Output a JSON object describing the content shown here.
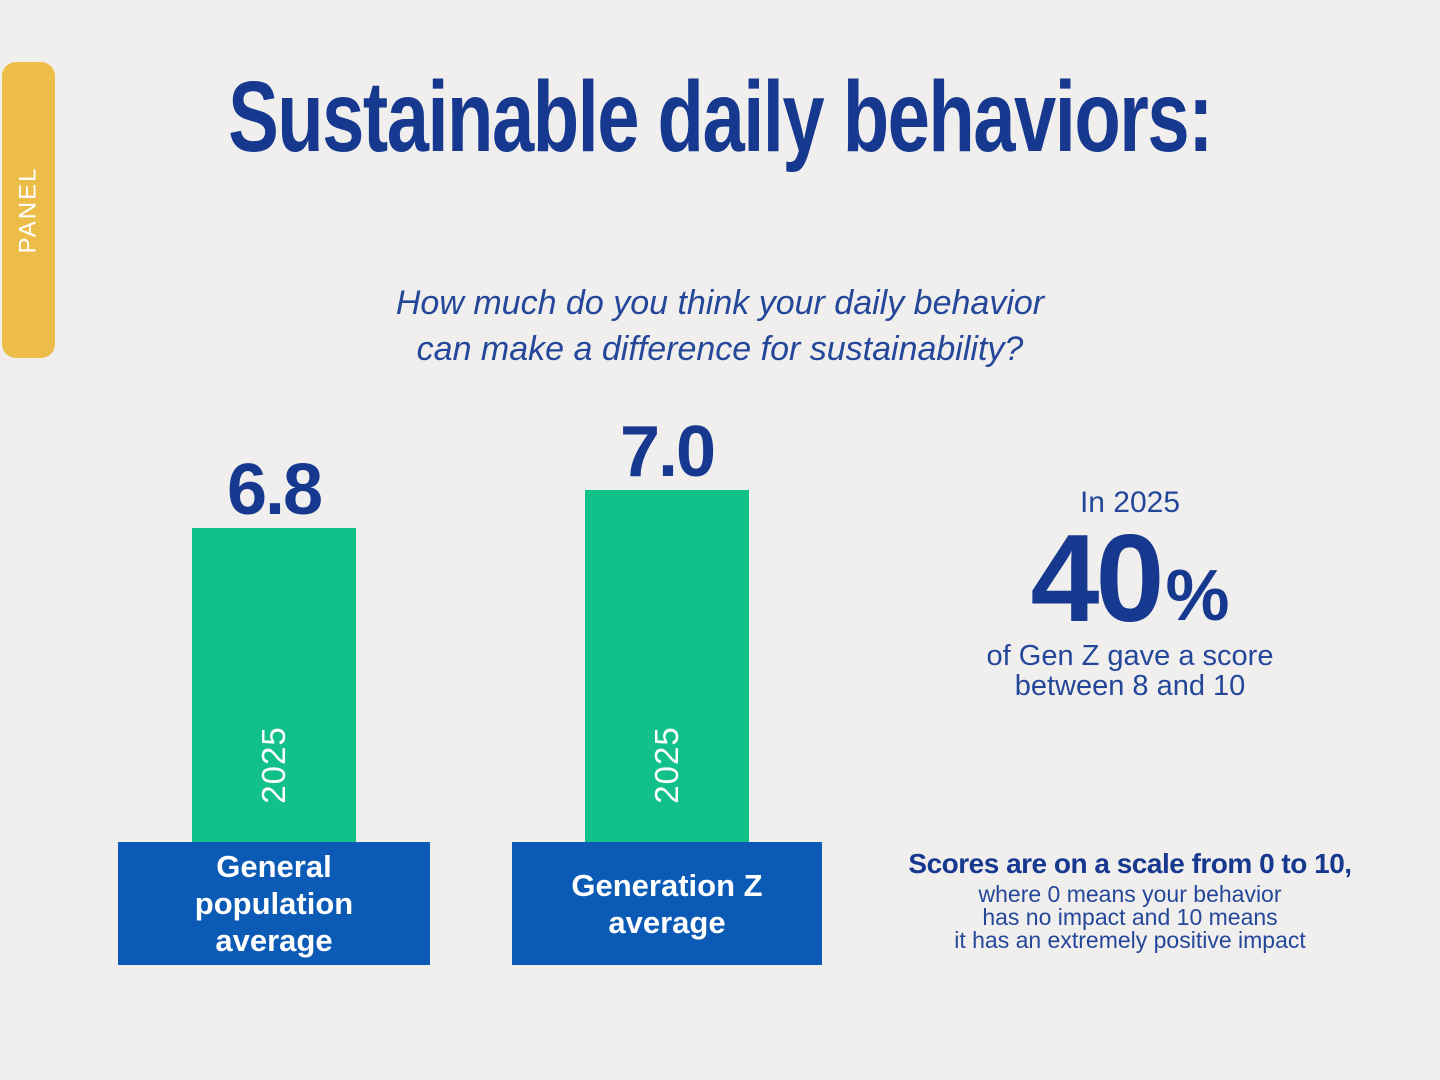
{
  "background_color": "#f0efee",
  "colors": {
    "navy_accent": "#16398f",
    "body_blue": "#24479a",
    "bar_green": "#12c08a",
    "caption_blue": "#0b5ab5",
    "tab_yellow": "#ecbd49",
    "text_on_fills": "#ffffff"
  },
  "panel_tab": {
    "label": "PANEL"
  },
  "title": "Sustainable daily behaviors:",
  "question": {
    "line1": "How much do you think your daily behavior",
    "line2": "can make a difference for sustainability?"
  },
  "bars": [
    {
      "value_label": "6.8",
      "year_label": "2025",
      "caption_line1": "General",
      "caption_line2": "population",
      "caption_line3": "average"
    },
    {
      "value_label": "7.0",
      "year_label": "2025",
      "caption_line1": "Generation Z",
      "caption_line2": "average"
    }
  ],
  "highlight": {
    "intro": "In 2025",
    "stat_value": "40",
    "stat_unit": "%",
    "desc_line1": "of Gen Z gave a score",
    "desc_line2": "between 8 and 10"
  },
  "footnote": {
    "bold_line": "Scores are on a scale from 0 to 10,",
    "line1": "where 0 means your behavior",
    "line2": "has no impact and 10 means",
    "line3": "it has an extremely positive impact"
  },
  "chart_data": {
    "type": "bar",
    "title": "Sustainable daily behaviors:",
    "subtitle": "How much do you think your daily behavior can make a difference for sustainability?",
    "categories": [
      "General population average",
      "Generation Z average"
    ],
    "series": [
      {
        "name": "2025",
        "values": [
          6.8,
          7.0
        ]
      }
    ],
    "value_labels": [
      "6.8",
      "7.0"
    ],
    "ylim": [
      0,
      10
    ],
    "grid": false,
    "legend_position": "none",
    "bar_color": "#12c08a",
    "annotation": "In 2025 40% of Gen Z gave a score between 8 and 10",
    "scale_note": "Scores are on a scale from 0 to 10, where 0 means your behavior has no impact and 10 means it has an extremely positive impact"
  }
}
